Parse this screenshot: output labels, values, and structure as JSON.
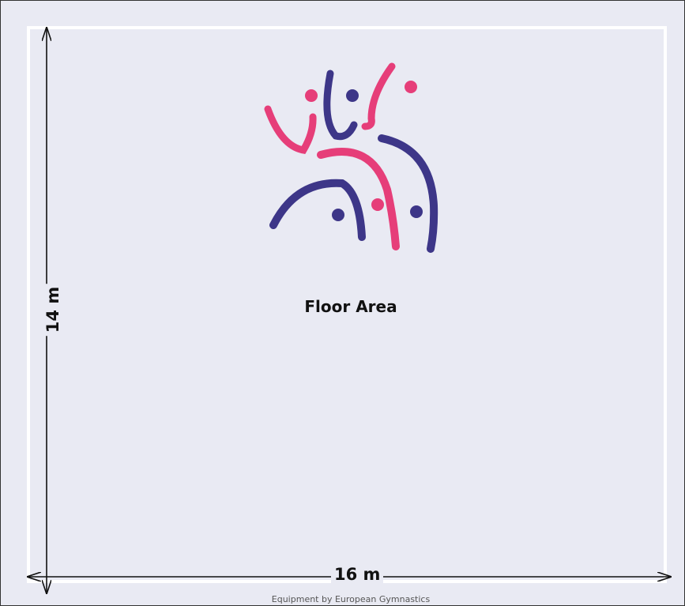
{
  "diagram": {
    "area_label": "Floor Area",
    "width_label": "16 m",
    "height_label": "14 m",
    "footer": "Equipment by European Gymnastics"
  },
  "logo": {
    "colors": {
      "pink": "#e63e79",
      "navy": "#3d3688"
    }
  },
  "colors": {
    "floor": "#e9eaf3",
    "border": "#ffffff",
    "arrows": "#111111"
  }
}
